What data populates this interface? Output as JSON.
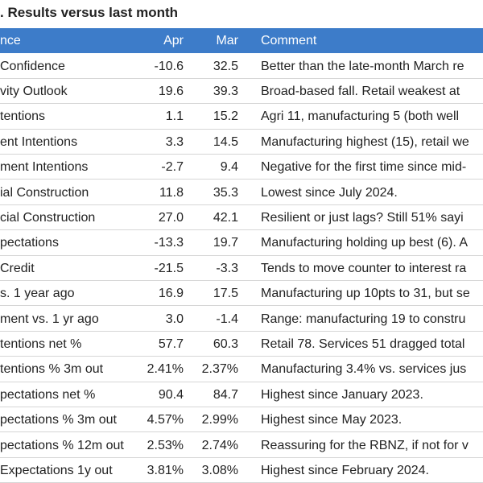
{
  "title": ". Results versus last month",
  "table": {
    "header": [
      "nce",
      "Apr",
      "Mar",
      "Comment"
    ],
    "rows": [
      [
        "Confidence",
        "-10.6",
        "32.5",
        "Better than the late-month March re"
      ],
      [
        "vity Outlook",
        "19.6",
        "39.3",
        "Broad-based fall. Retail weakest at"
      ],
      [
        "tentions",
        "1.1",
        "15.2",
        "Agri 11, manufacturing 5 (both well"
      ],
      [
        "ent Intentions",
        "3.3",
        "14.5",
        "Manufacturing highest (15), retail we"
      ],
      [
        "ment Intentions",
        "-2.7",
        "9.4",
        "Negative for the first time since mid-"
      ],
      [
        "ial Construction",
        "11.8",
        "35.3",
        "Lowest since July 2024."
      ],
      [
        "cial Construction",
        "27.0",
        "42.1",
        "Resilient or just lags? Still 51% sayi"
      ],
      [
        "pectations",
        "-13.3",
        "19.7",
        "Manufacturing holding up best (6). A"
      ],
      [
        "Credit",
        "-21.5",
        "-3.3",
        "Tends to move counter to interest ra"
      ],
      [
        "s. 1 year ago",
        "16.9",
        "17.5",
        "Manufacturing up 10pts to 31, but se"
      ],
      [
        "ment vs. 1 yr ago",
        "3.0",
        "-1.4",
        "Range: manufacturing 19 to constru"
      ],
      [
        "tentions net %",
        "57.7",
        "60.3",
        "Retail 78. Services 51 dragged total"
      ],
      [
        "tentions % 3m out",
        "2.41%",
        "2.37%",
        "Manufacturing 3.4% vs. services jus"
      ],
      [
        "pectations net %",
        "90.4",
        "84.7",
        "Highest since January 2023."
      ],
      [
        "pectations % 3m out",
        "4.57%",
        "2.99%",
        "Highest since May 2023."
      ],
      [
        "pectations % 12m out",
        "2.53%",
        "2.74%",
        "Reassuring for the RBNZ, if not for v"
      ],
      [
        "Expectations 1y out",
        "3.81%",
        "3.08%",
        "Highest since February 2024."
      ]
    ]
  }
}
